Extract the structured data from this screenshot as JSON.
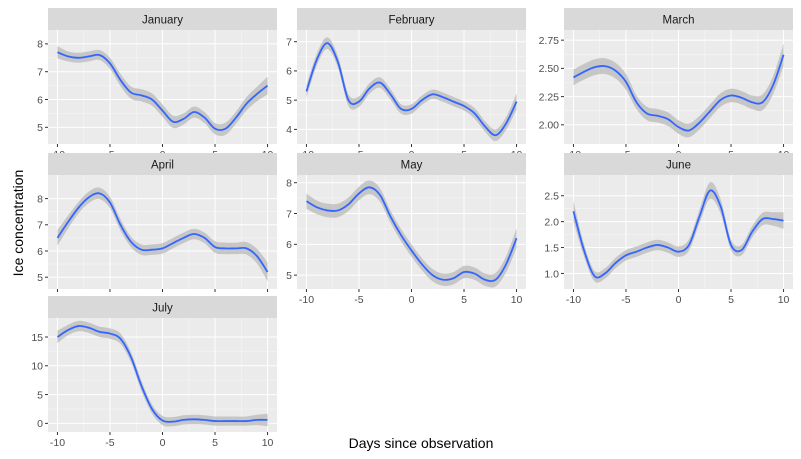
{
  "chart_data": {
    "type": "line",
    "xlabel": "Days since observation",
    "ylabel": "Ice concentration",
    "grid": true,
    "line_color": "#3366ff",
    "ribbon_color": "#bfbfbf",
    "panel_background": "#ebebeb",
    "strip_background": "#d9d9d9",
    "x_ticks": [
      -10,
      -5,
      0,
      5,
      10
    ],
    "xlim": [
      -10.9,
      10.9
    ],
    "panels": [
      {
        "title": "January",
        "ylim": [
          4.4,
          8.5
        ],
        "y_ticks": [
          5,
          6,
          7,
          8
        ],
        "y_tick_labels": [
          "5",
          "6",
          "7",
          "8"
        ],
        "x": [
          -10,
          -9,
          -8,
          -7,
          -6,
          -5,
          -4,
          -3,
          -2,
          -1,
          0,
          1,
          2,
          3,
          4,
          5,
          6,
          7,
          8,
          9,
          10
        ],
        "y": [
          7.7,
          7.55,
          7.5,
          7.55,
          7.6,
          7.3,
          6.7,
          6.25,
          6.15,
          6.0,
          5.6,
          5.2,
          5.3,
          5.55,
          5.35,
          4.95,
          4.95,
          5.35,
          5.85,
          6.2,
          6.5
        ],
        "band": [
          0.22,
          0.18,
          0.18,
          0.18,
          0.18,
          0.2,
          0.22,
          0.22,
          0.22,
          0.22,
          0.22,
          0.22,
          0.2,
          0.2,
          0.2,
          0.2,
          0.22,
          0.22,
          0.24,
          0.26,
          0.32
        ]
      },
      {
        "title": "February",
        "ylim": [
          3.5,
          7.4
        ],
        "y_ticks": [
          4,
          5,
          6,
          7
        ],
        "y_tick_labels": [
          "4",
          "5",
          "6",
          "7"
        ],
        "x": [
          -10,
          -9,
          -8,
          -7,
          -6,
          -5,
          -4,
          -3,
          -2,
          -1,
          0,
          1,
          2,
          3,
          4,
          5,
          6,
          7,
          8,
          9,
          10
        ],
        "y": [
          5.3,
          6.4,
          6.95,
          6.3,
          5.0,
          4.95,
          5.4,
          5.6,
          5.2,
          4.7,
          4.7,
          5.0,
          5.2,
          5.1,
          4.95,
          4.8,
          4.55,
          4.1,
          3.8,
          4.2,
          4.95
        ],
        "band": [
          0.22,
          0.2,
          0.2,
          0.2,
          0.2,
          0.18,
          0.18,
          0.18,
          0.18,
          0.16,
          0.16,
          0.16,
          0.16,
          0.16,
          0.16,
          0.16,
          0.18,
          0.18,
          0.2,
          0.22,
          0.28
        ]
      },
      {
        "title": "March",
        "ylim": [
          1.83,
          2.84
        ],
        "y_ticks": [
          2.0,
          2.25,
          2.5,
          2.75
        ],
        "y_tick_labels": [
          "2.00",
          "2.25",
          "2.50",
          "2.75"
        ],
        "x": [
          -10,
          -9,
          -8,
          -7,
          -6,
          -5,
          -4,
          -3,
          -2,
          -1,
          0,
          1,
          2,
          3,
          4,
          5,
          6,
          7,
          8,
          9,
          10
        ],
        "y": [
          2.42,
          2.47,
          2.51,
          2.52,
          2.48,
          2.38,
          2.2,
          2.1,
          2.08,
          2.05,
          1.98,
          1.95,
          2.02,
          2.12,
          2.22,
          2.26,
          2.24,
          2.2,
          2.2,
          2.35,
          2.62
        ],
        "band": [
          0.07,
          0.07,
          0.07,
          0.07,
          0.07,
          0.07,
          0.06,
          0.06,
          0.06,
          0.06,
          0.06,
          0.06,
          0.06,
          0.06,
          0.06,
          0.06,
          0.06,
          0.06,
          0.07,
          0.08,
          0.1
        ]
      },
      {
        "title": "April",
        "ylim": [
          4.55,
          8.9
        ],
        "y_ticks": [
          5,
          6,
          7,
          8
        ],
        "y_tick_labels": [
          "5",
          "6",
          "7",
          "8"
        ],
        "x": [
          -10,
          -9,
          -8,
          -7,
          -6,
          -5,
          -4,
          -3,
          -2,
          -1,
          0,
          1,
          2,
          3,
          4,
          5,
          6,
          7,
          8,
          9,
          10
        ],
        "y": [
          6.5,
          7.1,
          7.65,
          8.05,
          8.2,
          7.85,
          7.0,
          6.35,
          6.05,
          6.05,
          6.1,
          6.3,
          6.5,
          6.65,
          6.5,
          6.15,
          6.1,
          6.1,
          6.1,
          5.8,
          5.2
        ],
        "band": [
          0.3,
          0.25,
          0.22,
          0.22,
          0.22,
          0.22,
          0.22,
          0.2,
          0.2,
          0.2,
          0.2,
          0.2,
          0.2,
          0.2,
          0.2,
          0.22,
          0.22,
          0.22,
          0.24,
          0.28,
          0.36
        ]
      },
      {
        "title": "May",
        "ylim": [
          4.55,
          8.25
        ],
        "y_ticks": [
          5,
          6,
          7,
          8
        ],
        "y_tick_labels": [
          "5",
          "6",
          "7",
          "8"
        ],
        "x": [
          -10,
          -9,
          -8,
          -7,
          -6,
          -5,
          -4,
          -3,
          -2,
          -1,
          0,
          1,
          2,
          3,
          4,
          5,
          6,
          7,
          8,
          9,
          10
        ],
        "y": [
          7.4,
          7.2,
          7.1,
          7.1,
          7.3,
          7.65,
          7.85,
          7.6,
          6.9,
          6.3,
          5.8,
          5.35,
          5.0,
          4.85,
          4.9,
          5.1,
          5.05,
          4.85,
          4.85,
          5.35,
          6.2
        ],
        "band": [
          0.25,
          0.22,
          0.22,
          0.22,
          0.22,
          0.22,
          0.22,
          0.22,
          0.2,
          0.2,
          0.2,
          0.2,
          0.2,
          0.2,
          0.2,
          0.2,
          0.2,
          0.2,
          0.22,
          0.26,
          0.32
        ]
      },
      {
        "title": "June",
        "ylim": [
          0.7,
          2.9
        ],
        "y_ticks": [
          1.0,
          1.5,
          2.0,
          2.5
        ],
        "y_tick_labels": [
          "1.0",
          "1.5",
          "2.0",
          "2.5"
        ],
        "x": [
          -10,
          -9,
          -8,
          -7,
          -6,
          -5,
          -4,
          -3,
          -2,
          -1,
          0,
          1,
          2,
          3,
          4,
          5,
          6,
          7,
          8,
          9,
          10
        ],
        "y": [
          2.2,
          1.45,
          0.95,
          1.0,
          1.2,
          1.35,
          1.42,
          1.5,
          1.55,
          1.5,
          1.42,
          1.55,
          2.1,
          2.6,
          2.3,
          1.55,
          1.45,
          1.8,
          2.05,
          2.05,
          2.02
        ],
        "band": [
          0.2,
          0.12,
          0.1,
          0.1,
          0.1,
          0.1,
          0.1,
          0.1,
          0.1,
          0.1,
          0.1,
          0.11,
          0.13,
          0.16,
          0.14,
          0.1,
          0.1,
          0.11,
          0.12,
          0.13,
          0.16
        ]
      },
      {
        "title": "July",
        "ylim": [
          -1.5,
          18.3
        ],
        "y_ticks": [
          0,
          5,
          10,
          15
        ],
        "y_tick_labels": [
          "0",
          "5",
          "10",
          "15"
        ],
        "x": [
          -10,
          -9,
          -8,
          -7,
          -6,
          -5,
          -4,
          -3,
          -2,
          -1,
          0,
          1,
          2,
          3,
          4,
          5,
          6,
          7,
          8,
          9,
          10
        ],
        "y": [
          15.0,
          16.2,
          16.9,
          16.6,
          15.9,
          15.6,
          14.7,
          11.5,
          6.5,
          2.5,
          0.5,
          0.3,
          0.6,
          0.7,
          0.6,
          0.4,
          0.4,
          0.4,
          0.4,
          0.6,
          0.6
        ],
        "band": [
          1.1,
          0.9,
          0.9,
          0.9,
          0.9,
          0.9,
          0.9,
          0.9,
          0.9,
          0.8,
          0.8,
          0.8,
          0.8,
          0.8,
          0.8,
          0.8,
          0.8,
          0.8,
          0.8,
          0.9,
          1.1
        ]
      }
    ]
  }
}
